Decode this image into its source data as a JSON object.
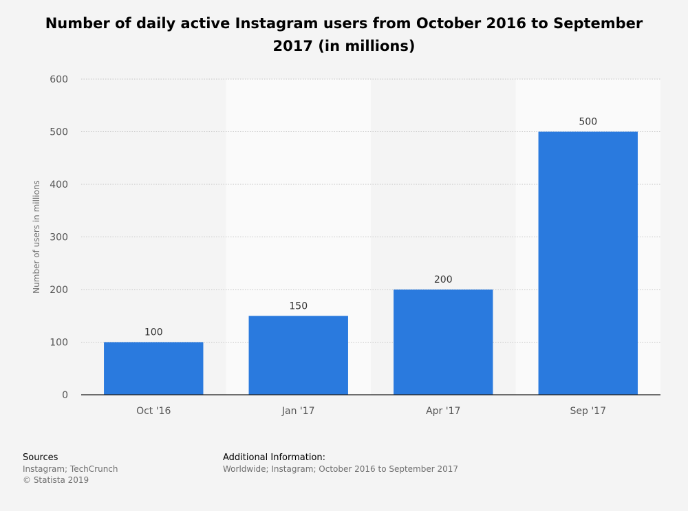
{
  "chart_data": {
    "type": "bar",
    "title": "Number of daily active Instagram users from October 2016 to September 2017 (in millions)",
    "categories": [
      "Oct '16",
      "Jan '17",
      "Apr '17",
      "Sep '17"
    ],
    "values": [
      100,
      150,
      200,
      500
    ],
    "data_labels": [
      "100",
      "150",
      "200",
      "500"
    ],
    "ylabel": "Number of users in millions",
    "xlabel": "",
    "ylim": [
      0,
      600
    ],
    "yticks": [
      0,
      100,
      200,
      300,
      400,
      500,
      600
    ],
    "ytick_labels": [
      "0",
      "100",
      "200",
      "300",
      "400",
      "500",
      "600"
    ],
    "grid": true,
    "bar_color": "#2a7ade"
  },
  "footer": {
    "sources_heading": "Sources",
    "sources_line1": "Instagram; TechCrunch",
    "sources_line2": "© Statista 2019",
    "additional_heading": "Additional Information:",
    "additional_line1": "Worldwide; Instagram; October 2016 to September 2017"
  }
}
